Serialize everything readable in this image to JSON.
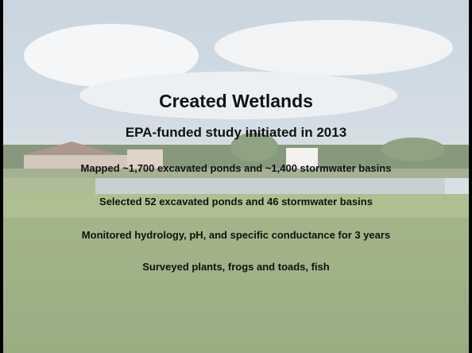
{
  "title": "Created Wetlands",
  "subtitle": "EPA-funded study initiated in 2013",
  "bullets": [
    "Mapped ~1,700 excavated ponds and ~1,400 stormwater basins",
    "Selected 52 excavated ponds and 46 stormwater basins",
    "Monitored hydrology, pH, and specific conductance for 3 years",
    "Surveyed plants, frogs and toads, fish"
  ]
}
